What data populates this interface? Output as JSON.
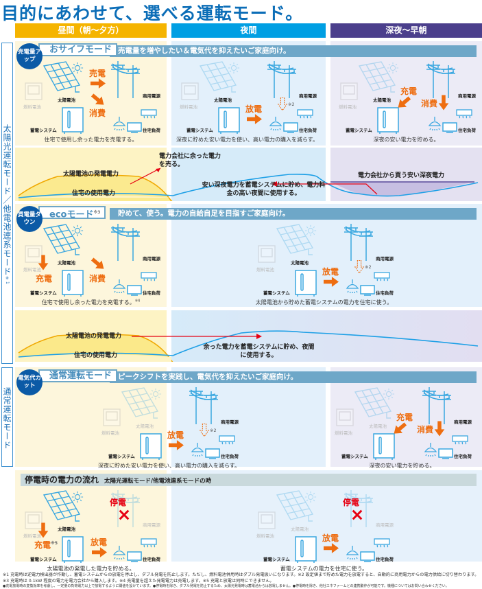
{
  "title": "目的にあわせて、選べる運転モード。",
  "columns": [
    {
      "label": "昼間（朝〜夕方）",
      "color": "#f5b400"
    },
    {
      "label": "夜間",
      "color": "#009fe3"
    },
    {
      "label": "深夜〜早朝",
      "color": "#4b3f8c"
    }
  ],
  "sections": {
    "solar": {
      "label": "太陽光運転モード／他電池連系モード",
      "note": "※1"
    },
    "normal": {
      "label": "通常運転モード"
    }
  },
  "labels": {
    "fuel": "燃料電池",
    "solar": "太陽電池",
    "storage": "蓄電システム",
    "grid": "商用電源",
    "load": "住宅負荷",
    "sell": "売電",
    "consume": "消費",
    "discharge": "放電",
    "charge": "充電",
    "outage": "停電",
    "note2": "※2",
    "note5": "※5"
  },
  "modes": {
    "saifu": {
      "badge": "売電量アップ",
      "name": "おサイフモード",
      "tagline": "売電量を増やしたい＆電気代を抑えたいご家庭向け。",
      "captions": [
        "住宅で使用し余った電力を売電する。",
        "深夜に貯めた安い電力を使い、高い電力の購入を減らす。",
        "深夜の安い電力を貯める。"
      ],
      "chart": {
        "generation": "太陽電池の発電電力",
        "usage": "住宅の使用電力",
        "sell_note": "電力会社に余った電力を売る。",
        "night_note": "安い深夜電力を蓄電システムに貯め、電力料金の高い夜間に使用する。",
        "buy_note": "電力会社から買う安い深夜電力"
      }
    },
    "eco": {
      "badge": "買電量ダウン",
      "name": "ecoモード",
      "name_note": "※3",
      "tagline": "貯めて、使う。電力の自給自足を目指すご家庭向け。",
      "captions": [
        "住宅で使用し余った電力を充電する。",
        "太陽電池から貯めた蓄電システムの電力を住宅に使う。"
      ],
      "caption_note": "※4",
      "chart": {
        "generation": "太陽電池の発電電力",
        "usage": "住宅の使用電力",
        "store_note": "余った電力を蓄電システムに貯め、夜間に使用する。"
      }
    },
    "normal": {
      "badge": "電気代カット",
      "name": "通常運転モード",
      "tagline": "ピークシフトを実践し、電気代を抑えたいご家庭向け。",
      "captions": [
        "深夜に貯めた安い電力を使い、高い電力の購入を減らす。",
        "深夜の安い電力を貯める。"
      ]
    }
  },
  "blackout": {
    "title": "停電時の電力の流れ",
    "subtitle": "太陽光運転モード/他電池連系モードの時",
    "captions": [
      "太陽電池の発電した電力を貯める。",
      "蓄電システムの電力を住宅に使う。"
    ]
  },
  "footnotes": [
    "※1 充電時は逆電力検出器が作動し、蓄電システムからの放電を停止し、ダブル発電を防止します。ただし、燃料電池併用時はダブル発電扱いになります。※2 設定値まで貯めた電力を放電すると、自動的に商用電力からの電力供給に切り替わります。※3 充電時は 0.1kW 程度の電力を電力会社から購入します。※4 充電量を超えた発電電力は売電します。※5 充電と放電は同時にできません。",
    "●充電放電時の変換効率を考慮し、一定量の負荷電力以上で放電するように閾値を設けています。●停電時を除き、ダブル発電を防止するため、太陽光発電時は蓄電池からは放電しません。●停電時を除き、他社エネファームとの連携動作が可能です。機種についてはお問い合わせください。"
  ],
  "colors": {
    "accent_orange": "#ee6d10",
    "icon_blue": "#3aa7e0",
    "badge_blue": "#0b5aa6",
    "mode_bar": "#6ea7c8",
    "red": "#e60012"
  }
}
